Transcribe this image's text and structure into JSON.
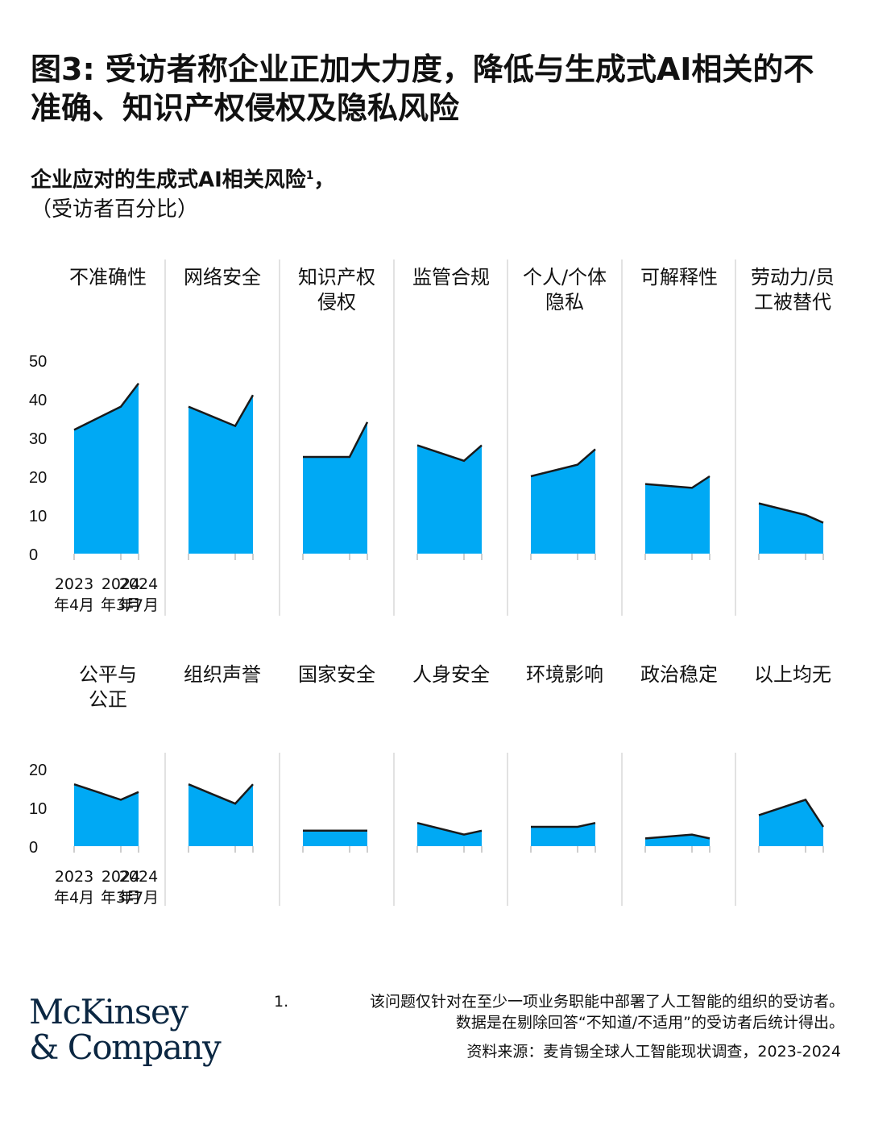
{
  "title": "图3: 受访者称企业正加大力度，降低与生成式AI相关的不准确、知识产权侵权及隐私风险",
  "subtitle": "企业应对的生成式AI相关风险",
  "subtitle_sup": "1",
  "subtitle_suffix": "，",
  "unit": "（受访者百分比）",
  "colors": {
    "fill": "#00a9f4",
    "line": "#1a1a1a",
    "divider": "#d9d9d9"
  },
  "chart_data": [
    {
      "type": "area",
      "x": [
        "2023年4月",
        "2024年3月",
        "2024年7月"
      ],
      "x_tick_labels": [
        [
          "2023",
          "年4月"
        ],
        [
          "2024",
          "年3月"
        ],
        [
          "2024",
          "年7月"
        ]
      ],
      "y_ticks": [
        0,
        10,
        20,
        30,
        40,
        50
      ],
      "ylim": [
        0,
        50
      ],
      "series": [
        {
          "name": "不准确性",
          "values": [
            32,
            38,
            44
          ]
        },
        {
          "name": "网络安全",
          "values": [
            38,
            33,
            41
          ]
        },
        {
          "name": "知识产权侵权",
          "values": [
            25,
            25,
            34
          ]
        },
        {
          "name": "监管合规",
          "values": [
            28,
            24,
            28
          ]
        },
        {
          "name": "个人/个体隐私",
          "values": [
            20,
            23,
            27
          ]
        },
        {
          "name": "可解释性",
          "values": [
            18,
            17,
            20
          ]
        },
        {
          "name": "劳动力/员工被替代",
          "values": [
            13,
            10,
            8
          ]
        }
      ]
    },
    {
      "type": "area",
      "x": [
        "2023年4月",
        "2024年3月",
        "2024年7月"
      ],
      "x_tick_labels": [
        [
          "2023",
          "年4月"
        ],
        [
          "2024",
          "年3月"
        ],
        [
          "2024",
          "年7月"
        ]
      ],
      "y_ticks": [
        0,
        10,
        20
      ],
      "ylim": [
        0,
        20
      ],
      "series": [
        {
          "name": "公平与公正",
          "values": [
            16,
            12,
            14
          ]
        },
        {
          "name": "组织声誉",
          "values": [
            16,
            11,
            16
          ]
        },
        {
          "name": "国家安全",
          "values": [
            4,
            4,
            4
          ]
        },
        {
          "name": "人身安全",
          "values": [
            6,
            3,
            4
          ]
        },
        {
          "name": "环境影响",
          "values": [
            5,
            5,
            6
          ]
        },
        {
          "name": "政治稳定",
          "values": [
            2,
            3,
            2
          ]
        },
        {
          "name": "以上均无",
          "values": [
            8,
            12,
            5
          ]
        }
      ]
    }
  ],
  "panel_title_lines": [
    [
      [
        "不准确性"
      ],
      [
        "网络安全"
      ],
      [
        "知识产权",
        "侵权"
      ],
      [
        "监管合规"
      ],
      [
        "个人/个体",
        "隐私"
      ],
      [
        "可解释性"
      ],
      [
        "劳动力/员",
        "工被替代"
      ]
    ],
    [
      [
        "公平与",
        "公正"
      ],
      [
        "组织声誉"
      ],
      [
        "国家安全"
      ],
      [
        "人身安全"
      ],
      [
        "环境影响"
      ],
      [
        "政治稳定"
      ],
      [
        "以上均无"
      ]
    ]
  ],
  "footnote": {
    "number": "1.",
    "line1": "该问题仅针对在至少一项业务职能中部署了人工智能的组织的受访者。",
    "line2": "数据是在剔除回答“不知道/不适用”的受访者后统计得出。"
  },
  "source": "资料来源：麦肯锡全球人工智能现状调查，2023-2024",
  "logo": {
    "line1": "McKinsey",
    "line2": "& Company"
  }
}
